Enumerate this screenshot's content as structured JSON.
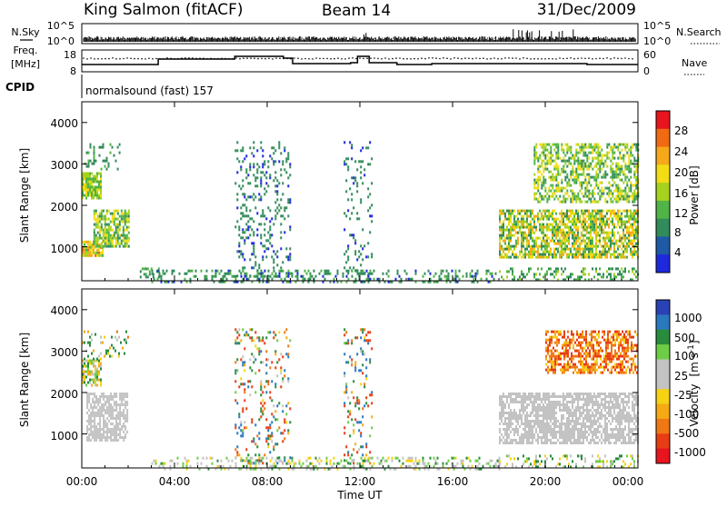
{
  "header": {
    "station": "King Salmon (fitACF)",
    "beam": "Beam 14",
    "date": "31/Dec/2009"
  },
  "strips": {
    "nsky_label": "N.Sky",
    "nsky_ticks": [
      "10^5",
      "10^0"
    ],
    "nsearch_label": "N.Search",
    "nsearch_ticks": [
      "10^5",
      "10^0"
    ],
    "freq_label": "Freq.",
    "freq_unit": "[MHz]",
    "freq_ticks": [
      "18",
      "8"
    ],
    "nave_label": "Nave",
    "nave_ticks": [
      "60",
      "0"
    ],
    "cpid_label": "CPID",
    "cpid_value": "normalsound (fast) 157"
  },
  "axes": {
    "ylabel": "Slant Range [km]",
    "yticks": [
      "4000",
      "3000",
      "2000",
      "1000"
    ],
    "xlabel": "Time UT",
    "xticks": [
      "00:00",
      "04:00",
      "08:00",
      "12:00",
      "16:00",
      "20:00",
      "00:00"
    ]
  },
  "power_scale": {
    "label": "Power [dB]",
    "ticks": [
      "28",
      "24",
      "20",
      "16",
      "12",
      "8",
      "4"
    ],
    "colors": [
      "#e8141e",
      "#f06a14",
      "#f5a81a",
      "#f2dc14",
      "#a6d21e",
      "#50b446",
      "#328b5a",
      "#1e5aa5",
      "#1e28dc"
    ]
  },
  "velocity_scale": {
    "label": "Velocity",
    "unit": "[m s",
    "unit_exp": "-1",
    "unit_close": "]",
    "ticks": [
      "1000",
      "500",
      "100",
      "25",
      "-25",
      "-100",
      "-500",
      "-1000"
    ],
    "colors": [
      "#2a42b4",
      "#2a78be",
      "#288c3c",
      "#6ecd46",
      "#c3c3c3",
      "#c3c3c3",
      "#f5d214",
      "#f5aa14",
      "#f07814",
      "#e83c14",
      "#e8141e"
    ]
  },
  "chart_data": {
    "type": "heatmap",
    "time_range_hours": [
      0,
      24
    ],
    "range_limits_km": [
      180,
      4500
    ],
    "tick_hours": [
      0,
      4,
      8,
      12,
      16,
      20,
      24
    ],
    "panels": [
      {
        "name": "Power [dB]",
        "scale": [
          0,
          30
        ],
        "regions": [
          {
            "t": [
              0.0,
              0.9
            ],
            "r": [
              800,
              1150
            ],
            "density": 0.85,
            "value": [
              10,
              26
            ]
          },
          {
            "t": [
              0.5,
              2.0
            ],
            "r": [
              1000,
              1900
            ],
            "density": 0.8,
            "value": [
              4,
              20
            ]
          },
          {
            "t": [
              0.0,
              0.8
            ],
            "r": [
              2200,
              2800
            ],
            "density": 0.8,
            "value": [
              8,
              20
            ]
          },
          {
            "t": [
              0.1,
              1.6
            ],
            "r": [
              2900,
              3500
            ],
            "density": 0.25,
            "value": [
              4,
              10
            ]
          },
          {
            "t": [
              2.5,
              3.3
            ],
            "r": [
              300,
              500
            ],
            "density": 0.4,
            "value": [
              4,
              10
            ]
          },
          {
            "t": [
              6.6,
              9.0
            ],
            "r": [
              300,
              3550
            ],
            "density": 0.18,
            "value": [
              3,
              8
            ]
          },
          {
            "t": [
              11.3,
              12.5
            ],
            "r": [
              300,
              3550
            ],
            "density": 0.13,
            "value": [
              3,
              8
            ]
          },
          {
            "t": [
              3.0,
              18.0
            ],
            "r": [
              180,
              450
            ],
            "density": 0.3,
            "value": [
              3,
              10
            ]
          },
          {
            "t": [
              18.0,
              24.0
            ],
            "r": [
              180,
              500
            ],
            "density": 0.3,
            "value": [
              4,
              14
            ]
          },
          {
            "t": [
              18.0,
              24.0
            ],
            "r": [
              750,
              1900
            ],
            "density": 0.7,
            "value": [
              4,
              24
            ]
          },
          {
            "t": [
              19.5,
              24.0
            ],
            "r": [
              2100,
              3500
            ],
            "density": 0.55,
            "value": [
              4,
              20
            ]
          }
        ]
      },
      {
        "name": "Velocity [m s-1]",
        "scale": [
          -1000,
          1000
        ],
        "regions": [
          {
            "t": [
              0.2,
              2.0
            ],
            "r": [
              850,
              2000
            ],
            "density": 0.75,
            "value": [
              -20,
              20
            ]
          },
          {
            "t": [
              0.0,
              0.8
            ],
            "r": [
              2200,
              2800
            ],
            "density": 0.7,
            "value": [
              -300,
              200
            ]
          },
          {
            "t": [
              0.0,
              2.0
            ],
            "r": [
              2800,
              3500
            ],
            "density": 0.2,
            "value": [
              -400,
              400
            ]
          },
          {
            "t": [
              6.6,
              9.0
            ],
            "r": [
              300,
              3550
            ],
            "density": 0.18,
            "value": [
              -1000,
              1000
            ]
          },
          {
            "t": [
              11.3,
              12.5
            ],
            "r": [
              300,
              3550
            ],
            "density": 0.14,
            "value": [
              -1000,
              1000
            ]
          },
          {
            "t": [
              3.0,
              18.0
            ],
            "r": [
              180,
              450
            ],
            "density": 0.3,
            "value": [
              -150,
              150
            ]
          },
          {
            "t": [
              18.0,
              24.0
            ],
            "r": [
              800,
              2000
            ],
            "density": 0.7,
            "value": [
              -20,
              20
            ]
          },
          {
            "t": [
              20.0,
              24.0
            ],
            "r": [
              2500,
              3500
            ],
            "density": 0.6,
            "value": [
              -700,
              -100
            ]
          },
          {
            "t": [
              18.0,
              24.0
            ],
            "r": [
              180,
              500
            ],
            "density": 0.3,
            "value": [
              -200,
              200
            ]
          }
        ]
      }
    ],
    "freq_mhz": {
      "limits": [
        8,
        18
      ],
      "steps": [
        [
          0,
          11
        ],
        [
          3.3,
          14
        ],
        [
          6.6,
          15.5
        ],
        [
          8.7,
          14.5
        ],
        [
          9.1,
          11.5
        ],
        [
          11.6,
          12
        ],
        [
          11.9,
          15.5
        ],
        [
          12.4,
          12
        ],
        [
          13.6,
          11
        ],
        [
          15.1,
          11.5
        ],
        [
          18.5,
          11.5
        ],
        [
          21.8,
          11
        ]
      ]
    },
    "nave": {
      "limits": [
        0,
        60
      ],
      "typical": 38
    }
  }
}
